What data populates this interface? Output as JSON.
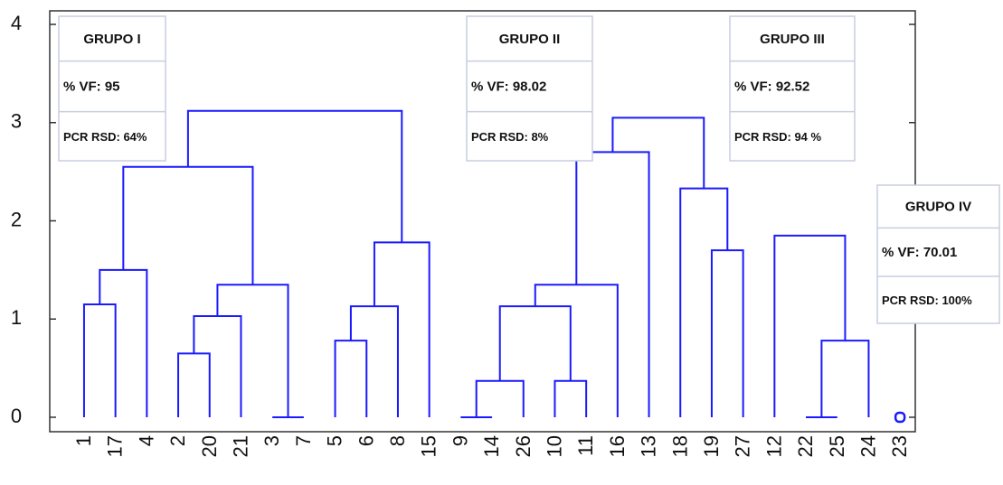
{
  "chart_data": {
    "type": "dendrogram",
    "leaves": [
      "1",
      "17",
      "4",
      "2",
      "20",
      "21",
      "3",
      "7",
      "5",
      "6",
      "8",
      "15",
      "9",
      "14",
      "26",
      "10",
      "11",
      "16",
      "13",
      "18",
      "19",
      "27",
      "12",
      "22",
      "25",
      "24",
      "23"
    ],
    "merges": [
      {
        "left": 0,
        "right": 1,
        "height": 1.15
      },
      {
        "left": 27,
        "right": 2,
        "height": 1.5
      },
      {
        "left": 3,
        "right": 4,
        "height": 0.65
      },
      {
        "left": 29,
        "right": 5,
        "height": 1.03
      },
      {
        "left": 6,
        "right": 7,
        "height": 0
      },
      {
        "left": 30,
        "right": 31,
        "height": 1.35
      },
      {
        "left": 28,
        "right": 32,
        "height": 2.55
      },
      {
        "left": 8,
        "right": 9,
        "height": 0.78
      },
      {
        "left": 34,
        "right": 10,
        "height": 1.13
      },
      {
        "left": 35,
        "right": 11,
        "height": 1.78
      },
      {
        "left": 33,
        "right": 36,
        "height": 3.12
      },
      {
        "left": 12,
        "right": 13,
        "height": 0
      },
      {
        "left": 38,
        "right": 14,
        "height": 0.37
      },
      {
        "left": 15,
        "right": 16,
        "height": 0.37
      },
      {
        "left": 39,
        "right": 40,
        "height": 1.13
      },
      {
        "left": 41,
        "right": 17,
        "height": 1.35
      },
      {
        "left": 42,
        "right": 18,
        "height": 2.7
      },
      {
        "left": 20,
        "right": 21,
        "height": 1.7
      },
      {
        "left": 19,
        "right": 44,
        "height": 2.33
      },
      {
        "left": 43,
        "right": 45,
        "height": 3.05
      },
      {
        "left": 23,
        "right": 24,
        "height": 0
      },
      {
        "left": 47,
        "right": 25,
        "height": 0.78
      },
      {
        "left": 22,
        "right": 48,
        "height": 1.85
      }
    ],
    "color": "#1a1aff",
    "ylim": [
      0,
      4
    ],
    "yticks": [
      0,
      1,
      2,
      3,
      4
    ],
    "annotations": [
      {
        "title": "GRUPO I",
        "vf": "% VF: 95",
        "rsd": "PCR RSD: 64%"
      },
      {
        "title": "GRUPO II",
        "vf": "% VF: 98.02",
        "rsd": "PCR RSD: 8%"
      },
      {
        "title": "GRUPO III",
        "vf": "% VF: 92.52",
        "rsd": "PCR RSD: 94 %"
      },
      {
        "title": "GRUPO IV",
        "vf": "% VF: 70.01",
        "rsd": "PCR RSD: 100%"
      }
    ]
  }
}
